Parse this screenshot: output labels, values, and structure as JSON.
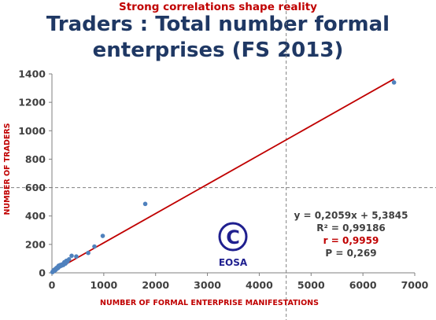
{
  "supertitle": "Strong correlations shape reality",
  "title_line1": "Traders : Total number formal",
  "title_line2": "enterprises (FS 2013)",
  "chart_data": {
    "type": "scatter",
    "title": "Traders : Total number formal enterprises (FS 2013)",
    "xlabel": "NUMBER OF FORMAL ENTERPRISE MANIFESTATIONS",
    "ylabel": "NUMBER OF TRADERS",
    "xlim": [
      0,
      7000
    ],
    "ylim": [
      0,
      1400
    ],
    "xticks": [
      0,
      1000,
      2000,
      3000,
      4000,
      5000,
      6000,
      7000
    ],
    "yticks": [
      0,
      200,
      400,
      600,
      800,
      1000,
      1200,
      1400
    ],
    "grid": false,
    "points": [
      {
        "x": 10,
        "y": 5
      },
      {
        "x": 20,
        "y": 10
      },
      {
        "x": 30,
        "y": 15
      },
      {
        "x": 40,
        "y": 20
      },
      {
        "x": 50,
        "y": 15
      },
      {
        "x": 60,
        "y": 25
      },
      {
        "x": 70,
        "y": 20
      },
      {
        "x": 80,
        "y": 30
      },
      {
        "x": 90,
        "y": 35
      },
      {
        "x": 100,
        "y": 30
      },
      {
        "x": 110,
        "y": 40
      },
      {
        "x": 120,
        "y": 35
      },
      {
        "x": 130,
        "y": 50
      },
      {
        "x": 150,
        "y": 45
      },
      {
        "x": 160,
        "y": 55
      },
      {
        "x": 180,
        "y": 50
      },
      {
        "x": 200,
        "y": 60
      },
      {
        "x": 220,
        "y": 55
      },
      {
        "x": 240,
        "y": 75
      },
      {
        "x": 260,
        "y": 65
      },
      {
        "x": 280,
        "y": 85
      },
      {
        "x": 300,
        "y": 80
      },
      {
        "x": 330,
        "y": 95
      },
      {
        "x": 380,
        "y": 120
      },
      {
        "x": 470,
        "y": 115
      },
      {
        "x": 700,
        "y": 140
      },
      {
        "x": 820,
        "y": 185
      },
      {
        "x": 980,
        "y": 260
      },
      {
        "x": 1800,
        "y": 485
      },
      {
        "x": 6600,
        "y": 1340
      }
    ],
    "trendline": {
      "slope": 0.2059,
      "intercept": 5.3845,
      "x_range": [
        0,
        6600
      ]
    },
    "crosshair": {
      "x": 4520,
      "y": 600
    },
    "annotations": {
      "equation": "y = 0,2059x + 5,3845",
      "r2": "R² = 0,99186",
      "r": "r = 0,9959",
      "p": "P = 0,269"
    },
    "colors": {
      "points": "#4f81bd",
      "trendline": "#c00000",
      "axis_labels": "#c00000",
      "title": "#1f3864"
    }
  },
  "logo": {
    "symbol": "©",
    "text": "EOSA",
    "color": "#1f1f8f"
  }
}
